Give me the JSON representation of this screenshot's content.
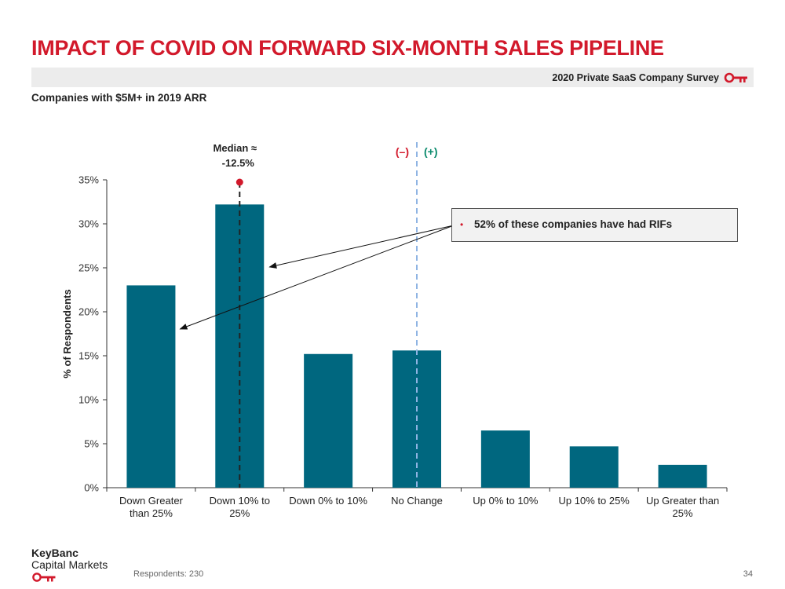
{
  "header": {
    "title": "IMPACT OF COVID ON FORWARD SIX-MONTH SALES PIPELINE",
    "survey_label": "2020 Private SaaS Company Survey",
    "subtitle": "Companies with $5M+ in 2019 ARR"
  },
  "footer": {
    "logo_line1": "KeyBanc",
    "logo_line2": "Capital Markets",
    "respondents": "Respondents: 230",
    "page_number": "34"
  },
  "callout": {
    "text": "52% of these companies have had RIFs"
  },
  "colors": {
    "title_red": "#d2192b",
    "bar": "#00677f",
    "positive_green": "#0a8a6c",
    "divider_blue": "#8fb4e3"
  },
  "chart_data": {
    "type": "bar",
    "categories": [
      [
        "Down Greater",
        "than 25%"
      ],
      [
        "Down 10% to",
        "25%"
      ],
      [
        "Down 0% to 10%"
      ],
      [
        "No Change"
      ],
      [
        "Up 0% to 10%"
      ],
      [
        "Up 10% to 25%"
      ],
      [
        "Up Greater than",
        "25%"
      ]
    ],
    "values": [
      23.0,
      32.2,
      15.2,
      15.6,
      6.5,
      4.7,
      2.6
    ],
    "ylabel": "% of Respondents",
    "ylim": [
      0,
      35
    ],
    "yticks": [
      0,
      5,
      10,
      15,
      20,
      25,
      30,
      35
    ],
    "ytick_suffix": "%",
    "grid": false,
    "median": {
      "label_line1": "Median ≈",
      "label_line2": "-12.5%",
      "category_index": 1
    },
    "divider": {
      "negative_label": "(–)",
      "positive_label": "(+)",
      "category_index": 3
    }
  }
}
